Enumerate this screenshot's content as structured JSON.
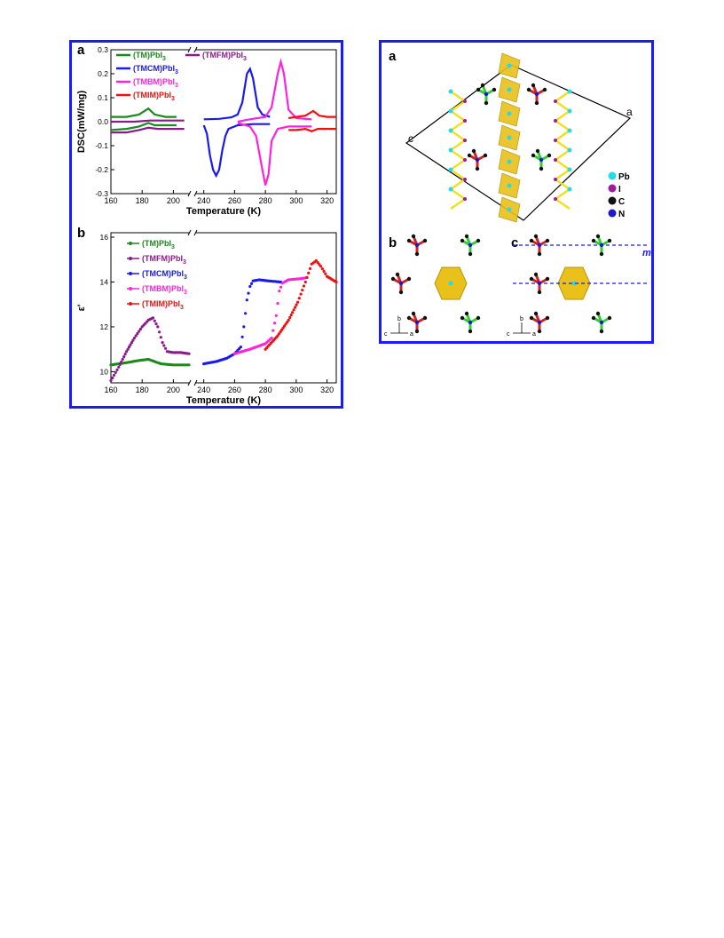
{
  "chart_data": [
    {
      "type": "line",
      "panel_label": "a",
      "xlabel": "Temperature (K)",
      "ylabel": "DSC(mW/mg)",
      "ylim": [
        -0.3,
        0.3
      ],
      "xticks": [
        "160",
        "180",
        "200",
        "240",
        "260",
        "280",
        "300",
        "320"
      ],
      "yticks": [
        "0.3",
        "0.2",
        "0.1",
        "0.0",
        "-0.1",
        "-0.2",
        "-0.3"
      ],
      "axis_break": true,
      "legend": [
        {
          "name": "(TM)PbI",
          "sub": "3",
          "color": "#1a8a1a"
        },
        {
          "name": "(TMFM)PbI",
          "sub": "3",
          "color": "#8b1a8b"
        },
        {
          "name": "(TMCM)PbI",
          "sub": "3",
          "color": "#1a1aee"
        },
        {
          "name": "(TMBM)PbI",
          "sub": "3",
          "color": "#ff22dd"
        },
        {
          "name": "(TMIM)PbI",
          "sub": "3",
          "color": "#ee1111"
        }
      ],
      "series": [
        {
          "name": "(TM)PbI3",
          "color": "#1a8a1a",
          "curves": [
            [
              [
                160,
                0.02
              ],
              [
                170,
                0.02
              ],
              [
                178,
                0.03
              ],
              [
                184,
                0.055
              ],
              [
                188,
                0.03
              ],
              [
                195,
                0.02
              ],
              [
                202,
                0.02
              ]
            ],
            [
              [
                160,
                -0.035
              ],
              [
                170,
                -0.03
              ],
              [
                178,
                -0.02
              ],
              [
                184,
                -0.005
              ],
              [
                188,
                -0.015
              ],
              [
                195,
                -0.015
              ],
              [
                202,
                -0.015
              ]
            ]
          ]
        },
        {
          "name": "(TMFM)PbI3",
          "color": "#8b1a8b",
          "curves": [
            [
              [
                160,
                0.0
              ],
              [
                175,
                0.0
              ],
              [
                185,
                0.005
              ],
              [
                195,
                0.005
              ],
              [
                202,
                0.005
              ],
              [
                207,
                0.005
              ]
            ],
            [
              [
                160,
                -0.045
              ],
              [
                170,
                -0.045
              ],
              [
                178,
                -0.035
              ],
              [
                184,
                -0.025
              ],
              [
                190,
                -0.03
              ],
              [
                200,
                -0.03
              ],
              [
                207,
                -0.03
              ]
            ]
          ]
        },
        {
          "name": "(TMCM)PbI3",
          "color": "#1a1aee",
          "curves": [
            [
              [
                240,
                0.01
              ],
              [
                250,
                0.012
              ],
              [
                258,
                0.018
              ],
              [
                262,
                0.03
              ],
              [
                265,
                0.08
              ],
              [
                268,
                0.2
              ],
              [
                270,
                0.22
              ],
              [
                272,
                0.18
              ],
              [
                275,
                0.06
              ],
              [
                278,
                0.03
              ],
              [
                283,
                0.02
              ]
            ],
            [
              [
                240,
                -0.015
              ],
              [
                242,
                -0.05
              ],
              [
                244,
                -0.14
              ],
              [
                246,
                -0.2
              ],
              [
                248,
                -0.225
              ],
              [
                250,
                -0.2
              ],
              [
                252,
                -0.12
              ],
              [
                254,
                -0.06
              ],
              [
                256,
                -0.03
              ],
              [
                262,
                -0.015
              ],
              [
                272,
                -0.01
              ],
              [
                283,
                -0.01
              ]
            ]
          ]
        },
        {
          "name": "(TMBM)PbI3",
          "color": "#ff22dd",
          "curves": [
            [
              [
                262,
                0.0
              ],
              [
                270,
                0.01
              ],
              [
                280,
                0.02
              ],
              [
                284,
                0.06
              ],
              [
                288,
                0.2
              ],
              [
                290,
                0.25
              ],
              [
                292,
                0.2
              ],
              [
                295,
                0.05
              ],
              [
                300,
                0.015
              ],
              [
                310,
                0.01
              ]
            ],
            [
              [
                262,
                -0.005
              ],
              [
                270,
                -0.02
              ],
              [
                274,
                -0.06
              ],
              [
                278,
                -0.2
              ],
              [
                280,
                -0.265
              ],
              [
                282,
                -0.22
              ],
              [
                284,
                -0.08
              ],
              [
                288,
                -0.03
              ],
              [
                295,
                -0.02
              ],
              [
                310,
                -0.02
              ]
            ]
          ]
        },
        {
          "name": "(TMIM)PbI3",
          "color": "#ee1111",
          "curves": [
            [
              [
                295,
                0.015
              ],
              [
                300,
                0.02
              ],
              [
                306,
                0.025
              ],
              [
                311,
                0.045
              ],
              [
                315,
                0.025
              ],
              [
                320,
                0.02
              ],
              [
                326,
                0.02
              ]
            ],
            [
              [
                295,
                -0.035
              ],
              [
                300,
                -0.035
              ],
              [
                306,
                -0.03
              ],
              [
                310,
                -0.04
              ],
              [
                314,
                -0.03
              ],
              [
                320,
                -0.03
              ],
              [
                326,
                -0.03
              ]
            ]
          ]
        }
      ]
    },
    {
      "type": "scatter",
      "panel_label": "b",
      "xlabel": "Temperature (K)",
      "ylabel": "ε'",
      "ylim": [
        9.5,
        16.2
      ],
      "xticks": [
        "160",
        "180",
        "200",
        "240",
        "260",
        "280",
        "300",
        "320"
      ],
      "yticks": [
        "16",
        "14",
        "12",
        "10"
      ],
      "axis_break": true,
      "legend": [
        {
          "name": "(TM)PbI",
          "sub": "3",
          "color": "#1a8a1a"
        },
        {
          "name": "(TMFM)PbI",
          "sub": "3",
          "color": "#8b1a8b"
        },
        {
          "name": "(TMCM)PbI",
          "sub": "3",
          "color": "#1a1aee"
        },
        {
          "name": "(TMBM)PbI",
          "sub": "3",
          "color": "#ff22dd"
        },
        {
          "name": "(TMIM)PbI",
          "sub": "3",
          "color": "#ee1111"
        }
      ],
      "series": [
        {
          "name": "(TM)PbI3",
          "color": "#1a8a1a",
          "points": [
            [
              160,
              10.3
            ],
            [
              170,
              10.4
            ],
            [
              178,
              10.5
            ],
            [
              184,
              10.55
            ],
            [
              188,
              10.45
            ],
            [
              192,
              10.35
            ],
            [
              200,
              10.3
            ],
            [
              210,
              10.3
            ]
          ]
        },
        {
          "name": "(TMFM)PbI3",
          "color": "#8b1a8b",
          "points": [
            [
              160,
              9.6
            ],
            [
              165,
              10.2
            ],
            [
              170,
              10.9
            ],
            [
              175,
              11.5
            ],
            [
              180,
              12.0
            ],
            [
              184,
              12.3
            ],
            [
              187,
              12.4
            ],
            [
              190,
              12.0
            ],
            [
              193,
              11.3
            ],
            [
              196,
              10.9
            ],
            [
              200,
              10.85
            ],
            [
              205,
              10.85
            ],
            [
              210,
              10.8
            ]
          ]
        },
        {
          "name": "(TMCM)PbI3",
          "color": "#1a1aee",
          "points": [
            [
              240,
              10.35
            ],
            [
              248,
              10.45
            ],
            [
              255,
              10.6
            ],
            [
              260,
              10.8
            ],
            [
              264,
              11.1
            ],
            [
              266,
              12.0
            ],
            [
              268,
              13.2
            ],
            [
              270,
              13.8
            ],
            [
              272,
              14.05
            ],
            [
              276,
              14.1
            ],
            [
              282,
              14.05
            ],
            [
              290,
              14.0
            ]
          ]
        },
        {
          "name": "(TMBM)PbI3",
          "color": "#ff22dd",
          "points": [
            [
              260,
              10.8
            ],
            [
              270,
              11.0
            ],
            [
              280,
              11.25
            ],
            [
              284,
              11.5
            ],
            [
              287,
              12.5
            ],
            [
              289,
              13.6
            ],
            [
              291,
              13.95
            ],
            [
              295,
              14.1
            ],
            [
              303,
              14.15
            ],
            [
              307,
              14.2
            ]
          ]
        },
        {
          "name": "(TMIM)PbI3",
          "color": "#ee1111",
          "points": [
            [
              280,
              11.0
            ],
            [
              288,
              11.6
            ],
            [
              295,
              12.3
            ],
            [
              301,
              13.1
            ],
            [
              306,
              14.0
            ],
            [
              310,
              14.8
            ],
            [
              313,
              14.95
            ],
            [
              316,
              14.7
            ],
            [
              320,
              14.25
            ],
            [
              326,
              14.0
            ]
          ]
        }
      ]
    }
  ],
  "structure_figure": {
    "panels": [
      "a",
      "b",
      "c"
    ],
    "axis_labels": {
      "a": "a",
      "c": "c",
      "m": "m"
    },
    "mini_axes": {
      "b": "b",
      "c": "c",
      "a": "a"
    },
    "legend": [
      {
        "label": "Pb",
        "color": "#29d9e8"
      },
      {
        "label": "I",
        "color": "#a01aa0"
      },
      {
        "label": "C",
        "color": "#111111"
      },
      {
        "label": "N",
        "color": "#1a1acc"
      }
    ],
    "colors": {
      "frame": "#1a1aff",
      "polyhedron": "#e8c21a",
      "bond_yellow": "#f0e020",
      "cation_red": "#cc2222",
      "cation_green": "#33cc33",
      "mirror_line": "#1a1aee"
    }
  }
}
